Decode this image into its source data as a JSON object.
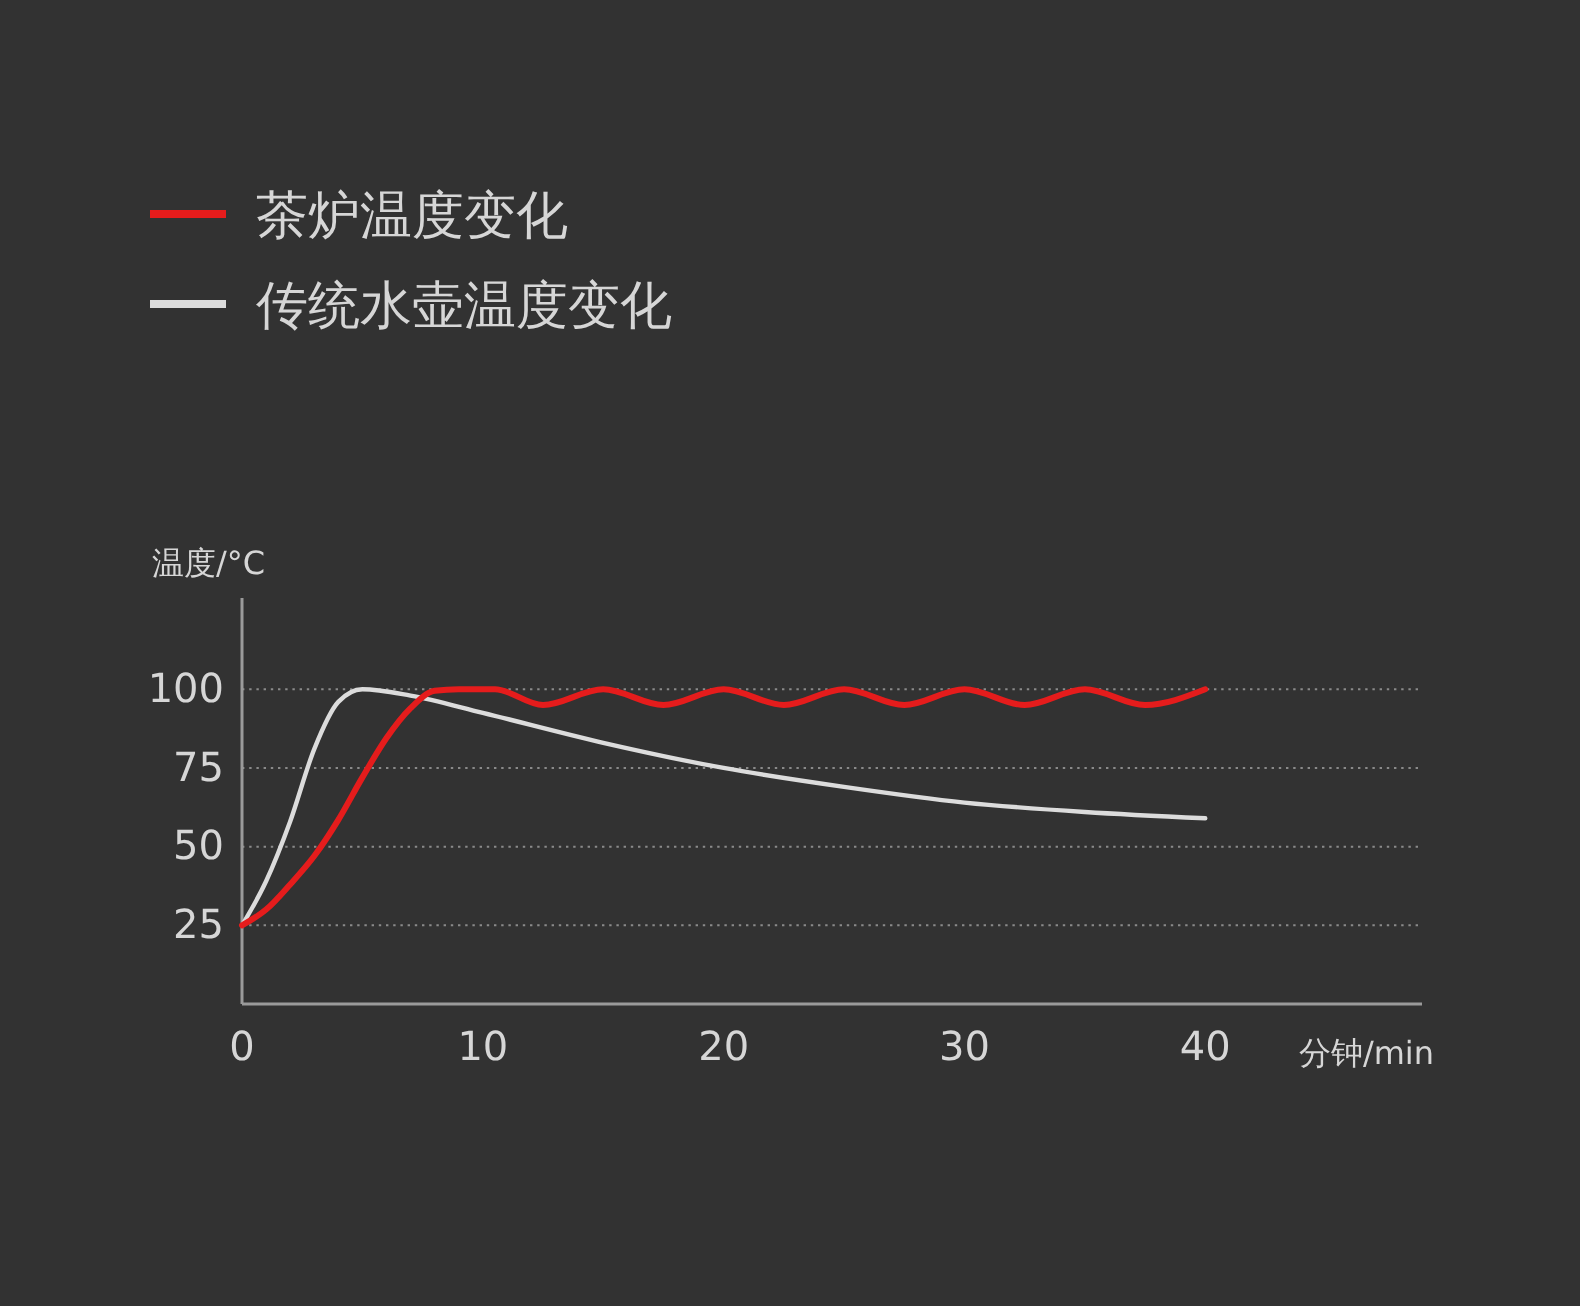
{
  "chart_data": {
    "type": "line",
    "xlabel": "分钟/min",
    "ylabel": "温度/°C",
    "xlim": [
      0,
      49
    ],
    "xticks": [
      0,
      10,
      20,
      30,
      40
    ],
    "ylim": [
      0,
      129
    ],
    "yticks": [
      25,
      50,
      75,
      100
    ],
    "grid": "y",
    "legend": "top left",
    "line_style": "solid",
    "series": [
      {
        "name": "茶炉温度变化",
        "color": "#e51c1c",
        "x": [
          0,
          1,
          2,
          3,
          4,
          5,
          6,
          7,
          8,
          9,
          10.5,
          12.5,
          15,
          17.5,
          20,
          22.5,
          25,
          27.5,
          30,
          32.5,
          35,
          37.5,
          40
        ],
        "values": [
          25,
          30,
          38,
          47,
          58.5,
          72,
          84.5,
          94,
          99.5,
          100,
          100,
          95,
          100,
          95,
          100,
          95,
          100,
          95,
          100,
          95,
          100,
          95,
          100
        ]
      },
      {
        "name": "传统水壶温度变化",
        "color": "#dcdcdc",
        "x": [
          0,
          1,
          2,
          3,
          4,
          5,
          7,
          10,
          15,
          20,
          25,
          30,
          35,
          40
        ],
        "values": [
          25,
          39,
          58,
          81,
          96,
          100,
          98,
          92.5,
          83,
          75,
          69,
          64,
          61,
          59
        ]
      }
    ]
  }
}
